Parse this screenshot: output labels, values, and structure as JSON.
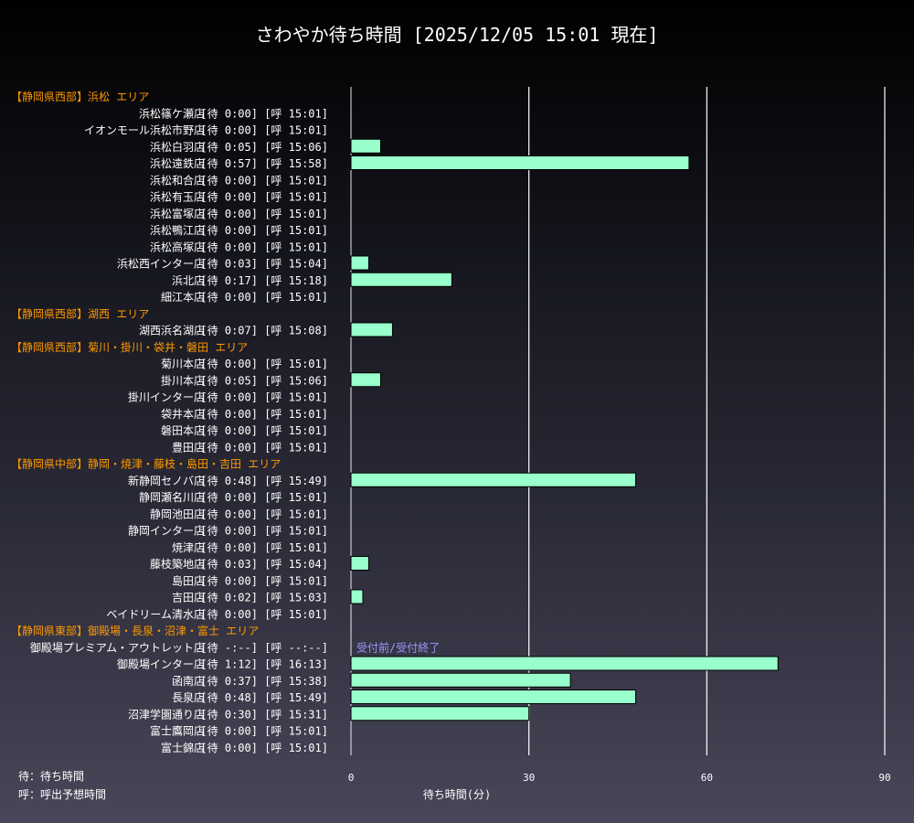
{
  "chart_data": {
    "type": "bar",
    "orientation": "horizontal",
    "title": "さわやか待ち時間 [2025/12/05 15:01 現在]",
    "xlabel": "待ち時間(分)",
    "xlim": [
      0,
      90
    ],
    "xticks": [
      0,
      30,
      60,
      90
    ],
    "grid": true,
    "bar_color": "#99ffcc",
    "area_color": "#ff9900",
    "note_color": "#9999ff",
    "rows": [
      {
        "kind": "area",
        "text": "【静岡県西部】浜松 エリア"
      },
      {
        "kind": "store",
        "name": "浜松篠ケ瀬店",
        "wait": "0:00",
        "call": "15:01",
        "minutes": 0
      },
      {
        "kind": "store",
        "name": "イオンモール浜松市野店",
        "wait": "0:00",
        "call": "15:01",
        "minutes": 0
      },
      {
        "kind": "store",
        "name": "浜松白羽店",
        "wait": "0:05",
        "call": "15:06",
        "minutes": 5
      },
      {
        "kind": "store",
        "name": "浜松遠鉄店",
        "wait": "0:57",
        "call": "15:58",
        "minutes": 57
      },
      {
        "kind": "store",
        "name": "浜松和合店",
        "wait": "0:00",
        "call": "15:01",
        "minutes": 0
      },
      {
        "kind": "store",
        "name": "浜松有玉店",
        "wait": "0:00",
        "call": "15:01",
        "minutes": 0
      },
      {
        "kind": "store",
        "name": "浜松富塚店",
        "wait": "0:00",
        "call": "15:01",
        "minutes": 0
      },
      {
        "kind": "store",
        "name": "浜松鴨江店",
        "wait": "0:00",
        "call": "15:01",
        "minutes": 0
      },
      {
        "kind": "store",
        "name": "浜松高塚店",
        "wait": "0:00",
        "call": "15:01",
        "minutes": 0
      },
      {
        "kind": "store",
        "name": "浜松西インター店",
        "wait": "0:03",
        "call": "15:04",
        "minutes": 3
      },
      {
        "kind": "store",
        "name": "浜北店",
        "wait": "0:17",
        "call": "15:18",
        "minutes": 17
      },
      {
        "kind": "store",
        "name": "細江本店",
        "wait": "0:00",
        "call": "15:01",
        "minutes": 0
      },
      {
        "kind": "area",
        "text": "【静岡県西部】湖西 エリア"
      },
      {
        "kind": "store",
        "name": "湖西浜名湖店",
        "wait": "0:07",
        "call": "15:08",
        "minutes": 7
      },
      {
        "kind": "area",
        "text": "【静岡県西部】菊川・掛川・袋井・磐田 エリア"
      },
      {
        "kind": "store",
        "name": "菊川本店",
        "wait": "0:00",
        "call": "15:01",
        "minutes": 0
      },
      {
        "kind": "store",
        "name": "掛川本店",
        "wait": "0:05",
        "call": "15:06",
        "minutes": 5
      },
      {
        "kind": "store",
        "name": "掛川インター店",
        "wait": "0:00",
        "call": "15:01",
        "minutes": 0
      },
      {
        "kind": "store",
        "name": "袋井本店",
        "wait": "0:00",
        "call": "15:01",
        "minutes": 0
      },
      {
        "kind": "store",
        "name": "磐田本店",
        "wait": "0:00",
        "call": "15:01",
        "minutes": 0
      },
      {
        "kind": "store",
        "name": "豊田店",
        "wait": "0:00",
        "call": "15:01",
        "minutes": 0
      },
      {
        "kind": "area",
        "text": "【静岡県中部】静岡・焼津・藤枝・島田・吉田 エリア"
      },
      {
        "kind": "store",
        "name": "新静岡セノバ店",
        "wait": "0:48",
        "call": "15:49",
        "minutes": 48
      },
      {
        "kind": "store",
        "name": "静岡瀬名川店",
        "wait": "0:00",
        "call": "15:01",
        "minutes": 0
      },
      {
        "kind": "store",
        "name": "静岡池田店",
        "wait": "0:00",
        "call": "15:01",
        "minutes": 0
      },
      {
        "kind": "store",
        "name": "静岡インター店",
        "wait": "0:00",
        "call": "15:01",
        "minutes": 0
      },
      {
        "kind": "store",
        "name": "焼津店",
        "wait": "0:00",
        "call": "15:01",
        "minutes": 0
      },
      {
        "kind": "store",
        "name": "藤枝築地店",
        "wait": "0:03",
        "call": "15:04",
        "minutes": 3
      },
      {
        "kind": "store",
        "name": "島田店",
        "wait": "0:00",
        "call": "15:01",
        "minutes": 0
      },
      {
        "kind": "store",
        "name": "吉田店",
        "wait": "0:02",
        "call": "15:03",
        "minutes": 2
      },
      {
        "kind": "store",
        "name": "ベイドリーム清水店",
        "wait": "0:00",
        "call": "15:01",
        "minutes": 0
      },
      {
        "kind": "area",
        "text": "【静岡県東部】御殿場・長泉・沼津・富士 エリア"
      },
      {
        "kind": "store",
        "name": "御殿場プレミアム・アウトレット店",
        "wait": "-:--",
        "call": "--:--",
        "minutes": 0,
        "note": "受付前/受付終了"
      },
      {
        "kind": "store",
        "name": "御殿場インター店",
        "wait": "1:12",
        "call": "16:13",
        "minutes": 72
      },
      {
        "kind": "store",
        "name": "函南店",
        "wait": "0:37",
        "call": "15:38",
        "minutes": 37
      },
      {
        "kind": "store",
        "name": "長泉店",
        "wait": "0:48",
        "call": "15:49",
        "minutes": 48
      },
      {
        "kind": "store",
        "name": "沼津学園通り店",
        "wait": "0:30",
        "call": "15:31",
        "minutes": 30
      },
      {
        "kind": "store",
        "name": "富士鷹岡店",
        "wait": "0:00",
        "call": "15:01",
        "minutes": 0
      },
      {
        "kind": "store",
        "name": "富士錦店",
        "wait": "0:00",
        "call": "15:01",
        "minutes": 0
      }
    ]
  },
  "legend": {
    "wait": "待：待ち時間",
    "call": "呼：呼出予想時間"
  }
}
